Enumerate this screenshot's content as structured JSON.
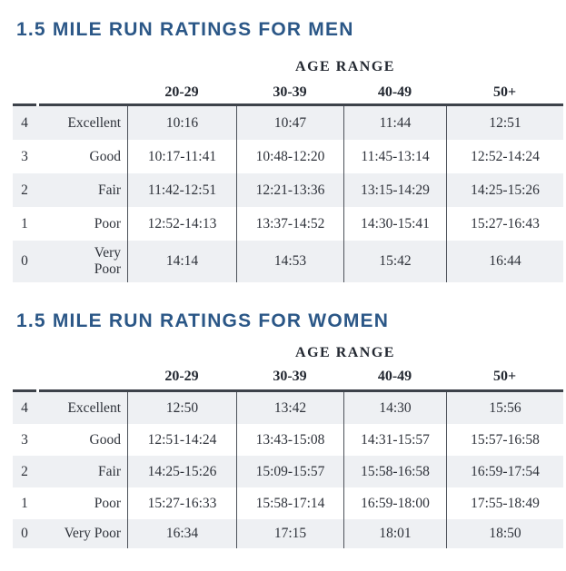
{
  "colors": {
    "title_blue": "#2b5787",
    "stripe": "#eef0f3",
    "border_dark": "#3d424a",
    "border_line": "#4d525a",
    "text_dark": "#2e323a",
    "header_text": "#232831",
    "page_bg": "#ffffff"
  },
  "tables": [
    {
      "title": "1.5 MILE RUN RATINGS FOR MEN",
      "age_range_label": "AGE RANGE",
      "columns": [
        "20-29",
        "30-39",
        "40-49",
        "50+"
      ],
      "rows": [
        {
          "score": "4",
          "label": "Excellent",
          "label_wrap": false,
          "values": [
            "10:16",
            "10:47",
            "11:44",
            "12:51"
          ]
        },
        {
          "score": "3",
          "label": "Good",
          "label_wrap": false,
          "values": [
            "10:17-11:41",
            "10:48-12:20",
            "11:45-13:14",
            "12:52-14:24"
          ]
        },
        {
          "score": "2",
          "label": "Fair",
          "label_wrap": false,
          "values": [
            "11:42-12:51",
            "12:21-13:36",
            "13:15-14:29",
            "14:25-15:26"
          ]
        },
        {
          "score": "1",
          "label": "Poor",
          "label_wrap": false,
          "values": [
            "12:52-14:13",
            "13:37-14:52",
            "14:30-15:41",
            "15:27-16:43"
          ]
        },
        {
          "score": "0",
          "label": "Very Poor",
          "label_wrap": true,
          "values": [
            "14:14",
            "14:53",
            "15:42",
            "16:44"
          ]
        }
      ]
    },
    {
      "title": "1.5 MILE RUN RATINGS FOR WOMEN",
      "age_range_label": "AGE RANGE",
      "columns": [
        "20-29",
        "30-39",
        "40-49",
        "50+"
      ],
      "rows": [
        {
          "score": "4",
          "label": "Excellent",
          "label_wrap": false,
          "values": [
            "12:50",
            "13:42",
            "14:30",
            "15:56"
          ]
        },
        {
          "score": "3",
          "label": "Good",
          "label_wrap": false,
          "values": [
            "12:51-14:24",
            "13:43-15:08",
            "14:31-15:57",
            "15:57-16:58"
          ]
        },
        {
          "score": "2",
          "label": "Fair",
          "label_wrap": false,
          "values": [
            "14:25-15:26",
            "15:09-15:57",
            "15:58-16:58",
            "16:59-17:54"
          ]
        },
        {
          "score": "1",
          "label": "Poor",
          "label_wrap": false,
          "values": [
            "15:27-16:33",
            "15:58-17:14",
            "16:59-18:00",
            "17:55-18:49"
          ]
        },
        {
          "score": "0",
          "label": "Very Poor",
          "label_wrap": false,
          "values": [
            "16:34",
            "17:15",
            "18:01",
            "18:50"
          ]
        }
      ]
    }
  ]
}
